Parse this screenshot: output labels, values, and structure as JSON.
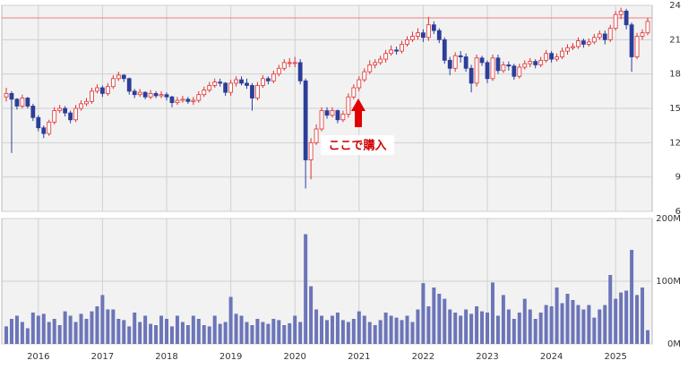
{
  "chart_data": {
    "type": "candlestick",
    "categories": [
      null,
      null,
      null,
      null,
      null,
      null,
      "2016",
      null,
      null,
      null,
      null,
      null,
      null,
      null,
      null,
      null,
      null,
      null,
      "2017",
      null,
      null,
      null,
      null,
      null,
      null,
      null,
      null,
      null,
      null,
      null,
      "2018",
      null,
      null,
      null,
      null,
      null,
      null,
      null,
      null,
      null,
      null,
      null,
      "2019",
      null,
      null,
      null,
      null,
      null,
      null,
      null,
      null,
      null,
      null,
      null,
      "2020",
      null,
      null,
      null,
      null,
      null,
      null,
      null,
      null,
      null,
      null,
      null,
      "2021",
      null,
      null,
      null,
      null,
      null,
      null,
      null,
      null,
      null,
      null,
      null,
      "2022",
      null,
      null,
      null,
      null,
      null,
      null,
      null,
      null,
      null,
      null,
      null,
      "2023",
      null,
      null,
      null,
      null,
      null,
      null,
      null,
      null,
      null,
      null,
      null,
      "2024",
      null,
      null,
      null,
      null,
      null,
      null,
      null,
      null,
      null,
      null,
      null,
      "2025",
      null,
      null,
      null,
      null,
      null,
      null
    ],
    "open": [
      16.0,
      16.3,
      15.8,
      15.2,
      15.9,
      15.2,
      14.2,
      13.3,
      12.8,
      13.8,
      14.8,
      15.0,
      14.6,
      14.0,
      15.0,
      15.4,
      15.6,
      16.5,
      16.8,
      16.3,
      16.9,
      17.6,
      17.9,
      17.6,
      16.5,
      16.2,
      16.4,
      16.0,
      16.3,
      16.1,
      16.2,
      16.0,
      15.5,
      15.7,
      15.8,
      15.6,
      15.7,
      16.2,
      16.6,
      17.0,
      17.3,
      17.2,
      16.4,
      17.2,
      17.5,
      17.2,
      17.0,
      15.9,
      17.0,
      17.6,
      17.4,
      18.0,
      18.5,
      19.0,
      19.0,
      19.0,
      17.4,
      10.5,
      12.0,
      13.2,
      14.8,
      14.4,
      14.8,
      14.0,
      14.5,
      16.0,
      16.8,
      17.5,
      18.2,
      18.8,
      19.0,
      19.3,
      19.8,
      20.1,
      20.0,
      20.6,
      21.0,
      21.3,
      21.6,
      21.2,
      22.3,
      21.8,
      21.0,
      19.2,
      18.5,
      19.6,
      19.5,
      18.5,
      17.2,
      19.4,
      19.0,
      17.6,
      19.4,
      18.3,
      18.8,
      18.7,
      17.8,
      18.6,
      18.9,
      19.1,
      18.8,
      19.2,
      19.8,
      19.3,
      19.5,
      20.0,
      20.3,
      20.4,
      20.9,
      20.6,
      20.8,
      21.2,
      21.5,
      21.0,
      22.0,
      23.2,
      23.5,
      22.3,
      19.5,
      21.3,
      21.6
    ],
    "high": [
      16.8,
      16.5,
      15.9,
      16.2,
      16.0,
      15.4,
      14.4,
      13.5,
      14.0,
      15.1,
      15.3,
      15.2,
      14.8,
      15.3,
      15.7,
      15.9,
      16.8,
      17.1,
      17.0,
      17.2,
      17.9,
      18.2,
      18.0,
      17.7,
      16.7,
      16.7,
      16.5,
      16.6,
      16.5,
      16.5,
      16.4,
      16.1,
      16.0,
      16.1,
      16.0,
      16.0,
      16.5,
      16.9,
      17.3,
      17.6,
      17.6,
      17.3,
      17.5,
      17.8,
      17.8,
      17.6,
      17.2,
      17.3,
      17.9,
      17.8,
      18.3,
      18.8,
      19.3,
      19.4,
      19.5,
      19.3,
      17.6,
      12.4,
      13.6,
      15.1,
      15.1,
      15.1,
      14.9,
      14.8,
      16.3,
      17.1,
      17.8,
      18.5,
      19.2,
      19.3,
      19.6,
      20.1,
      20.5,
      20.4,
      20.9,
      21.3,
      21.7,
      22.0,
      21.9,
      23.0,
      22.6,
      22.0,
      21.2,
      19.5,
      19.9,
      20.0,
      19.8,
      18.8,
      19.7,
      19.6,
      19.2,
      19.7,
      19.7,
      19.1,
      19.1,
      18.9,
      18.9,
      19.2,
      19.4,
      19.3,
      19.5,
      20.1,
      20.0,
      19.8,
      20.3,
      20.6,
      20.7,
      21.2,
      21.1,
      21.1,
      21.5,
      21.8,
      21.8,
      22.3,
      23.5,
      23.8,
      23.7,
      22.5,
      21.6,
      21.9,
      22.9
    ],
    "low": [
      15.6,
      11.1,
      14.9,
      15.0,
      15.0,
      13.9,
      13.0,
      12.4,
      12.6,
      13.6,
      14.6,
      14.3,
      13.7,
      13.8,
      14.8,
      15.2,
      15.4,
      16.3,
      16.0,
      16.1,
      16.7,
      17.4,
      17.3,
      16.2,
      15.9,
      16.0,
      15.8,
      15.8,
      15.9,
      15.9,
      15.7,
      15.1,
      15.3,
      15.5,
      15.4,
      15.3,
      15.5,
      16.0,
      16.4,
      16.8,
      16.9,
      16.1,
      16.1,
      16.9,
      17.0,
      16.7,
      14.8,
      15.7,
      16.8,
      17.1,
      17.2,
      17.8,
      18.3,
      18.6,
      18.6,
      17.1,
      8.0,
      8.8,
      11.8,
      13.0,
      14.1,
      14.2,
      13.7,
      13.8,
      14.2,
      15.8,
      16.5,
      17.3,
      18.0,
      18.5,
      18.8,
      19.0,
      19.6,
      19.7,
      19.8,
      20.4,
      20.8,
      21.0,
      20.8,
      20.9,
      21.5,
      20.7,
      18.9,
      17.9,
      18.2,
      19.0,
      18.2,
      16.4,
      16.9,
      18.7,
      17.2,
      17.4,
      18.0,
      18.1,
      18.3,
      17.5,
      17.6,
      18.4,
      18.6,
      18.5,
      18.6,
      19.0,
      19.0,
      19.1,
      19.3,
      19.7,
      20.1,
      20.2,
      20.3,
      20.4,
      20.6,
      21.0,
      20.6,
      20.8,
      21.8,
      22.8,
      21.9,
      18.2,
      19.3,
      21.0,
      21.4
    ],
    "close": [
      16.3,
      15.8,
      15.2,
      15.9,
      15.2,
      14.2,
      13.3,
      12.8,
      13.8,
      14.8,
      15.0,
      14.6,
      14.0,
      15.0,
      15.4,
      15.6,
      16.5,
      16.8,
      16.3,
      16.9,
      17.6,
      17.9,
      17.6,
      16.5,
      16.2,
      16.4,
      16.0,
      16.3,
      16.1,
      16.2,
      16.0,
      15.5,
      15.7,
      15.8,
      15.6,
      15.7,
      16.2,
      16.6,
      17.0,
      17.3,
      17.2,
      16.4,
      17.2,
      17.5,
      17.2,
      17.0,
      15.9,
      17.0,
      17.6,
      17.4,
      18.0,
      18.5,
      19.0,
      19.0,
      19.0,
      17.4,
      10.5,
      12.0,
      13.2,
      14.8,
      14.4,
      14.8,
      14.0,
      14.5,
      16.0,
      16.8,
      17.5,
      18.2,
      18.8,
      19.0,
      19.3,
      19.8,
      20.1,
      20.0,
      20.6,
      21.0,
      21.3,
      21.6,
      21.2,
      22.3,
      21.8,
      21.0,
      19.2,
      18.5,
      19.6,
      19.5,
      18.5,
      17.2,
      19.4,
      19.0,
      17.6,
      19.4,
      18.3,
      18.8,
      18.7,
      17.8,
      18.6,
      18.9,
      19.1,
      18.8,
      19.2,
      19.8,
      19.3,
      19.5,
      20.0,
      20.3,
      20.4,
      20.9,
      20.6,
      20.8,
      21.2,
      21.5,
      21.0,
      22.0,
      23.2,
      23.5,
      22.3,
      19.5,
      21.3,
      21.6,
      22.6
    ],
    "up_color": "#e03030",
    "down_color": "#2c3e99",
    "ylim": [
      6,
      24
    ],
    "yticks": [
      6,
      9,
      12,
      15,
      18,
      21,
      24
    ],
    "grid": true,
    "hline": {
      "value": 22.9,
      "color": "#f08080"
    },
    "annotation": "ここで購入",
    "volume": {
      "color": "#6b75b8",
      "ylim": [
        0,
        200
      ],
      "yticks": [
        {
          "value": 0,
          "label": "0M"
        },
        {
          "value": 100,
          "label": "100M"
        },
        {
          "value": 200,
          "label": "200M"
        }
      ],
      "values": [
        28,
        40,
        45,
        35,
        25,
        50,
        45,
        48,
        35,
        40,
        30,
        52,
        45,
        35,
        48,
        40,
        52,
        60,
        78,
        55,
        55,
        40,
        38,
        28,
        50,
        35,
        45,
        32,
        30,
        45,
        40,
        28,
        45,
        35,
        30,
        45,
        40,
        30,
        28,
        45,
        32,
        35,
        75,
        48,
        45,
        35,
        30,
        40,
        35,
        32,
        40,
        38,
        30,
        33,
        45,
        35,
        175,
        92,
        55,
        45,
        38,
        45,
        50,
        38,
        35,
        40,
        52,
        45,
        35,
        30,
        38,
        50,
        45,
        42,
        38,
        45,
        35,
        55,
        97,
        60,
        90,
        80,
        72,
        55,
        50,
        45,
        55,
        48,
        60,
        52,
        50,
        98,
        45,
        78,
        55,
        40,
        50,
        72,
        55,
        40,
        50,
        62,
        60,
        90,
        65,
        80,
        70,
        62,
        55,
        62,
        42,
        55,
        62,
        110,
        72,
        82,
        85,
        150,
        78,
        90,
        22
      ]
    }
  }
}
